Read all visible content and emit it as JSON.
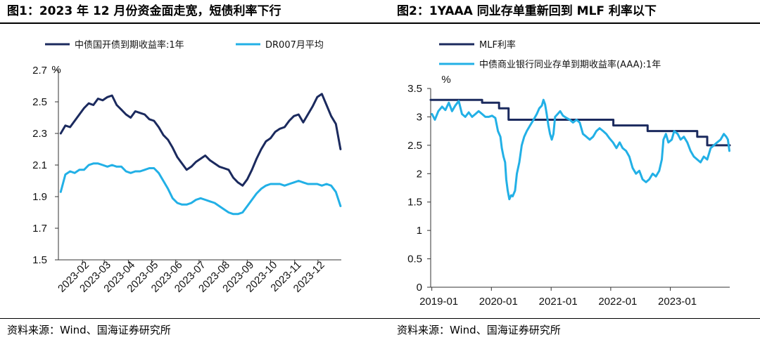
{
  "figures": [
    {
      "title": "图1：2023 年 12 月份资金面走宽，短债利率下行",
      "source": "资料来源：Wind、国海证券研究所"
    },
    {
      "title": "图2：1YAAA 同业存单重新回到 MLF 利率以下",
      "source": "资料来源：Wind、国海证券研究所"
    }
  ],
  "colors": {
    "navy": "#1B2A5E",
    "light_blue": "#22B0E6"
  },
  "chart_data": [
    {
      "type": "line",
      "title": "",
      "ylabel": "%",
      "ylim": [
        1.5,
        2.7
      ],
      "yticks": [
        "1.5",
        "1.7",
        "1.9",
        "2.1",
        "2.3",
        "2.5",
        "2.7"
      ],
      "xlim": [
        "2023-01-01",
        "2023-12-31"
      ],
      "xticks": [
        "2023-02",
        "2023-03",
        "2023-04",
        "2023-05",
        "2023-06",
        "2023-07",
        "2023-08",
        "2023-09",
        "2023-10",
        "2023-11",
        "2023-12"
      ],
      "legend_position": "top",
      "series": [
        {
          "name": "中债国开债到期收益率:1年",
          "color": "navy",
          "points": [
            [
              "2023-01-04",
              2.3
            ],
            [
              "2023-01-10",
              2.35
            ],
            [
              "2023-01-16",
              2.34
            ],
            [
              "2023-01-22",
              2.38
            ],
            [
              "2023-01-28",
              2.42
            ],
            [
              "2023-02-03",
              2.46
            ],
            [
              "2023-02-09",
              2.49
            ],
            [
              "2023-02-15",
              2.48
            ],
            [
              "2023-02-21",
              2.52
            ],
            [
              "2023-02-27",
              2.51
            ],
            [
              "2023-03-05",
              2.53
            ],
            [
              "2023-03-11",
              2.54
            ],
            [
              "2023-03-17",
              2.48
            ],
            [
              "2023-03-23",
              2.45
            ],
            [
              "2023-03-29",
              2.42
            ],
            [
              "2023-04-04",
              2.4
            ],
            [
              "2023-04-10",
              2.44
            ],
            [
              "2023-04-16",
              2.43
            ],
            [
              "2023-04-22",
              2.42
            ],
            [
              "2023-04-28",
              2.39
            ],
            [
              "2023-05-04",
              2.38
            ],
            [
              "2023-05-10",
              2.34
            ],
            [
              "2023-05-16",
              2.29
            ],
            [
              "2023-05-22",
              2.26
            ],
            [
              "2023-05-28",
              2.21
            ],
            [
              "2023-06-03",
              2.15
            ],
            [
              "2023-06-09",
              2.11
            ],
            [
              "2023-06-15",
              2.07
            ],
            [
              "2023-06-21",
              2.09
            ],
            [
              "2023-06-27",
              2.12
            ],
            [
              "2023-07-03",
              2.14
            ],
            [
              "2023-07-09",
              2.16
            ],
            [
              "2023-07-15",
              2.13
            ],
            [
              "2023-07-21",
              2.11
            ],
            [
              "2023-07-27",
              2.09
            ],
            [
              "2023-08-02",
              2.08
            ],
            [
              "2023-08-08",
              2.07
            ],
            [
              "2023-08-14",
              2.02
            ],
            [
              "2023-08-20",
              1.99
            ],
            [
              "2023-08-26",
              1.97
            ],
            [
              "2023-09-01",
              2.01
            ],
            [
              "2023-09-07",
              2.07
            ],
            [
              "2023-09-13",
              2.14
            ],
            [
              "2023-09-19",
              2.2
            ],
            [
              "2023-09-25",
              2.25
            ],
            [
              "2023-10-01",
              2.27
            ],
            [
              "2023-10-07",
              2.31
            ],
            [
              "2023-10-13",
              2.33
            ],
            [
              "2023-10-19",
              2.34
            ],
            [
              "2023-10-25",
              2.38
            ],
            [
              "2023-10-31",
              2.41
            ],
            [
              "2023-11-06",
              2.42
            ],
            [
              "2023-11-12",
              2.37
            ],
            [
              "2023-11-18",
              2.42
            ],
            [
              "2023-11-24",
              2.47
            ],
            [
              "2023-11-30",
              2.53
            ],
            [
              "2023-12-06",
              2.55
            ],
            [
              "2023-12-12",
              2.48
            ],
            [
              "2023-12-18",
              2.41
            ],
            [
              "2023-12-24",
              2.36
            ],
            [
              "2023-12-30",
              2.2
            ]
          ]
        },
        {
          "name": "DR007月平均",
          "color": "light_blue",
          "points": [
            [
              "2023-01-04",
              1.93
            ],
            [
              "2023-01-10",
              2.04
            ],
            [
              "2023-01-16",
              2.06
            ],
            [
              "2023-01-22",
              2.05
            ],
            [
              "2023-01-28",
              2.07
            ],
            [
              "2023-02-03",
              2.07
            ],
            [
              "2023-02-09",
              2.1
            ],
            [
              "2023-02-15",
              2.11
            ],
            [
              "2023-02-21",
              2.11
            ],
            [
              "2023-02-27",
              2.1
            ],
            [
              "2023-03-05",
              2.09
            ],
            [
              "2023-03-11",
              2.1
            ],
            [
              "2023-03-17",
              2.09
            ],
            [
              "2023-03-23",
              2.09
            ],
            [
              "2023-03-29",
              2.06
            ],
            [
              "2023-04-04",
              2.05
            ],
            [
              "2023-04-10",
              2.06
            ],
            [
              "2023-04-16",
              2.06
            ],
            [
              "2023-04-22",
              2.07
            ],
            [
              "2023-04-28",
              2.08
            ],
            [
              "2023-05-04",
              2.08
            ],
            [
              "2023-05-10",
              2.05
            ],
            [
              "2023-05-16",
              2.0
            ],
            [
              "2023-05-22",
              1.95
            ],
            [
              "2023-05-28",
              1.89
            ],
            [
              "2023-06-03",
              1.86
            ],
            [
              "2023-06-09",
              1.85
            ],
            [
              "2023-06-15",
              1.85
            ],
            [
              "2023-06-21",
              1.86
            ],
            [
              "2023-06-27",
              1.88
            ],
            [
              "2023-07-03",
              1.89
            ],
            [
              "2023-07-09",
              1.88
            ],
            [
              "2023-07-15",
              1.87
            ],
            [
              "2023-07-21",
              1.86
            ],
            [
              "2023-07-27",
              1.84
            ],
            [
              "2023-08-02",
              1.82
            ],
            [
              "2023-08-08",
              1.8
            ],
            [
              "2023-08-14",
              1.79
            ],
            [
              "2023-08-20",
              1.79
            ],
            [
              "2023-08-26",
              1.8
            ],
            [
              "2023-09-01",
              1.84
            ],
            [
              "2023-09-07",
              1.88
            ],
            [
              "2023-09-13",
              1.92
            ],
            [
              "2023-09-19",
              1.95
            ],
            [
              "2023-09-25",
              1.97
            ],
            [
              "2023-10-01",
              1.98
            ],
            [
              "2023-10-07",
              1.98
            ],
            [
              "2023-10-13",
              1.98
            ],
            [
              "2023-10-19",
              1.97
            ],
            [
              "2023-10-25",
              1.98
            ],
            [
              "2023-10-31",
              1.99
            ],
            [
              "2023-11-06",
              2.0
            ],
            [
              "2023-11-12",
              1.99
            ],
            [
              "2023-11-18",
              1.98
            ],
            [
              "2023-11-24",
              1.98
            ],
            [
              "2023-11-30",
              1.98
            ],
            [
              "2023-12-06",
              1.97
            ],
            [
              "2023-12-12",
              1.98
            ],
            [
              "2023-12-18",
              1.97
            ],
            [
              "2023-12-24",
              1.93
            ],
            [
              "2023-12-30",
              1.84
            ]
          ]
        }
      ]
    },
    {
      "type": "line",
      "title": "",
      "ylabel": "%",
      "ylim": [
        0,
        3.5
      ],
      "yticks": [
        "0",
        "0.5",
        "1",
        "1.5",
        "2",
        "2.5",
        "3",
        "3.5"
      ],
      "xlim": [
        "2018-12-25",
        "2023-12-31"
      ],
      "xticks": [
        "2019-01",
        "2020-01",
        "2021-01",
        "2022-01",
        "2023-01"
      ],
      "legend_position": "top",
      "series": [
        {
          "name": "MLF利率",
          "color": "navy",
          "step": true,
          "points": [
            [
              "2018-12-25",
              3.3
            ],
            [
              "2019-11-05",
              3.25
            ],
            [
              "2020-02-17",
              3.15
            ],
            [
              "2020-04-15",
              2.95
            ],
            [
              "2022-01-17",
              2.85
            ],
            [
              "2022-08-15",
              2.75
            ],
            [
              "2023-06-15",
              2.65
            ],
            [
              "2023-08-15",
              2.5
            ],
            [
              "2023-12-31",
              2.5
            ]
          ]
        },
        {
          "name": "中债商业银行同业存单到期收益率(AAA):1年",
          "color": "light_blue",
          "points": [
            [
              "2019-01-02",
              3.05
            ],
            [
              "2019-01-20",
              2.95
            ],
            [
              "2019-02-10",
              3.1
            ],
            [
              "2019-03-05",
              3.18
            ],
            [
              "2019-03-25",
              3.12
            ],
            [
              "2019-04-15",
              3.25
            ],
            [
              "2019-05-05",
              3.1
            ],
            [
              "2019-05-25",
              3.2
            ],
            [
              "2019-06-15",
              3.28
            ],
            [
              "2019-07-05",
              3.05
            ],
            [
              "2019-07-25",
              3.0
            ],
            [
              "2019-08-15",
              3.08
            ],
            [
              "2019-09-05",
              3.0
            ],
            [
              "2019-09-25",
              3.05
            ],
            [
              "2019-10-15",
              3.1
            ],
            [
              "2019-11-05",
              3.05
            ],
            [
              "2019-11-25",
              3.0
            ],
            [
              "2019-12-15",
              3.0
            ],
            [
              "2020-01-05",
              3.02
            ],
            [
              "2020-01-25",
              2.98
            ],
            [
              "2020-02-10",
              2.75
            ],
            [
              "2020-02-25",
              2.65
            ],
            [
              "2020-03-05",
              2.45
            ],
            [
              "2020-03-15",
              2.3
            ],
            [
              "2020-03-25",
              2.2
            ],
            [
              "2020-04-01",
              1.9
            ],
            [
              "2020-04-10",
              1.7
            ],
            [
              "2020-04-20",
              1.55
            ],
            [
              "2020-05-01",
              1.62
            ],
            [
              "2020-05-10",
              1.6
            ],
            [
              "2020-05-25",
              1.7
            ],
            [
              "2020-06-05",
              2.0
            ],
            [
              "2020-06-20",
              2.2
            ],
            [
              "2020-07-05",
              2.5
            ],
            [
              "2020-07-20",
              2.65
            ],
            [
              "2020-08-05",
              2.75
            ],
            [
              "2020-08-25",
              2.85
            ],
            [
              "2020-09-15",
              2.95
            ],
            [
              "2020-10-05",
              3.05
            ],
            [
              "2020-10-20",
              3.15
            ],
            [
              "2020-11-05",
              3.2
            ],
            [
              "2020-11-15",
              3.3
            ],
            [
              "2020-11-25",
              3.22
            ],
            [
              "2020-12-05",
              3.05
            ],
            [
              "2020-12-15",
              2.85
            ],
            [
              "2020-12-25",
              2.7
            ],
            [
              "2021-01-05",
              2.6
            ],
            [
              "2021-01-15",
              2.7
            ],
            [
              "2021-01-25",
              3.0
            ],
            [
              "2021-02-10",
              3.05
            ],
            [
              "2021-02-25",
              3.1
            ],
            [
              "2021-03-15",
              3.02
            ],
            [
              "2021-04-05",
              2.98
            ],
            [
              "2021-04-25",
              2.95
            ],
            [
              "2021-05-15",
              2.9
            ],
            [
              "2021-06-05",
              2.95
            ],
            [
              "2021-06-25",
              2.9
            ],
            [
              "2021-07-15",
              2.7
            ],
            [
              "2021-08-05",
              2.65
            ],
            [
              "2021-08-25",
              2.6
            ],
            [
              "2021-09-15",
              2.65
            ],
            [
              "2021-10-05",
              2.75
            ],
            [
              "2021-10-25",
              2.8
            ],
            [
              "2021-11-15",
              2.75
            ],
            [
              "2021-12-05",
              2.7
            ],
            [
              "2021-12-25",
              2.62
            ],
            [
              "2022-01-15",
              2.55
            ],
            [
              "2022-02-05",
              2.45
            ],
            [
              "2022-02-25",
              2.55
            ],
            [
              "2022-03-15",
              2.45
            ],
            [
              "2022-04-05",
              2.4
            ],
            [
              "2022-04-25",
              2.3
            ],
            [
              "2022-05-15",
              2.1
            ],
            [
              "2022-06-05",
              2.0
            ],
            [
              "2022-06-25",
              2.05
            ],
            [
              "2022-07-15",
              1.9
            ],
            [
              "2022-08-05",
              1.85
            ],
            [
              "2022-08-25",
              1.9
            ],
            [
              "2022-09-15",
              2.0
            ],
            [
              "2022-10-05",
              1.95
            ],
            [
              "2022-10-25",
              2.05
            ],
            [
              "2022-11-10",
              2.25
            ],
            [
              "2022-11-20",
              2.6
            ],
            [
              "2022-12-05",
              2.7
            ],
            [
              "2022-12-20",
              2.55
            ],
            [
              "2023-01-10",
              2.6
            ],
            [
              "2023-01-25",
              2.75
            ],
            [
              "2023-02-15",
              2.7
            ],
            [
              "2023-03-05",
              2.6
            ],
            [
              "2023-03-25",
              2.65
            ],
            [
              "2023-04-15",
              2.55
            ],
            [
              "2023-05-05",
              2.4
            ],
            [
              "2023-05-25",
              2.3
            ],
            [
              "2023-06-15",
              2.25
            ],
            [
              "2023-07-05",
              2.2
            ],
            [
              "2023-07-25",
              2.3
            ],
            [
              "2023-08-15",
              2.25
            ],
            [
              "2023-09-05",
              2.45
            ],
            [
              "2023-09-25",
              2.5
            ],
            [
              "2023-10-15",
              2.55
            ],
            [
              "2023-11-05",
              2.6
            ],
            [
              "2023-11-25",
              2.7
            ],
            [
              "2023-12-10",
              2.65
            ],
            [
              "2023-12-20",
              2.6
            ],
            [
              "2023-12-29",
              2.4
            ]
          ]
        }
      ]
    }
  ]
}
